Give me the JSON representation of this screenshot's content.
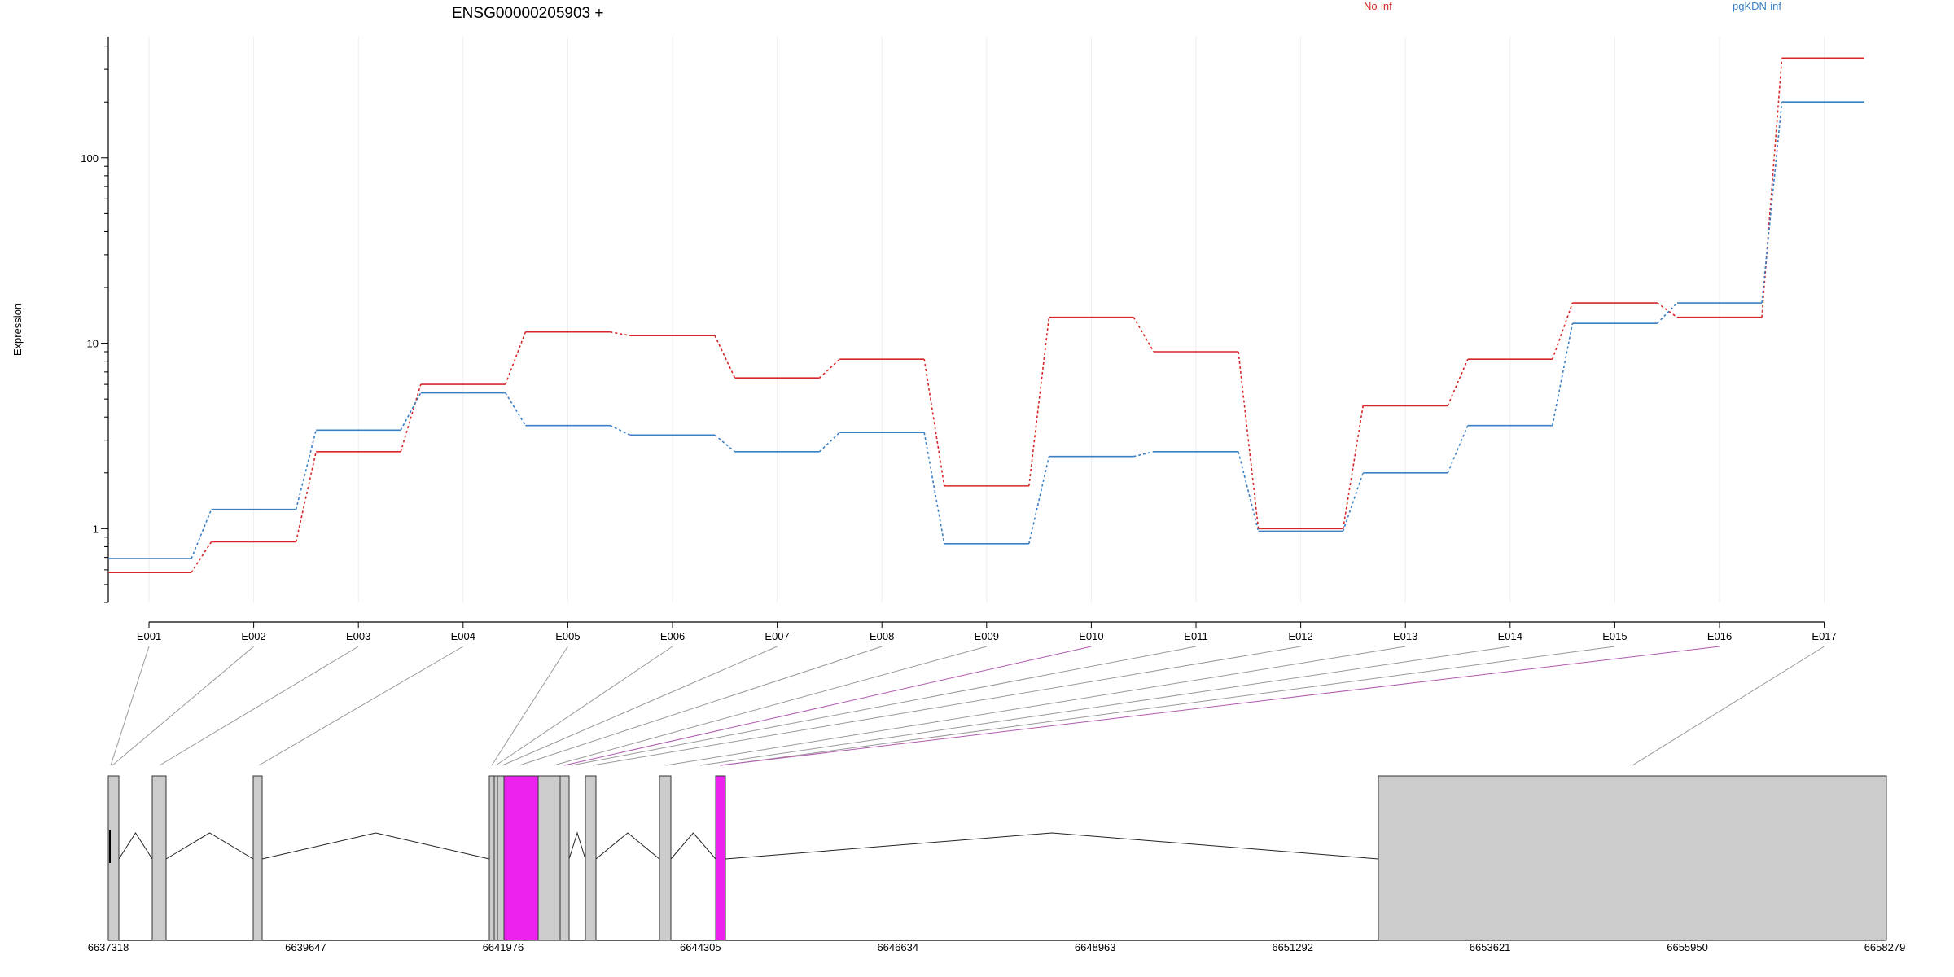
{
  "chart_data": {
    "type": "line",
    "title": "ENSG00000205903 +",
    "ylabel": "Expression",
    "yscale": "log",
    "ylim": [
      0.4,
      450
    ],
    "yticks": [
      1,
      10,
      100
    ],
    "yticklabels": [
      "1",
      "10",
      "100"
    ],
    "categories": [
      "E001",
      "E002",
      "E003",
      "E004",
      "E005",
      "E006",
      "E007",
      "E008",
      "E009",
      "E010",
      "E011",
      "E012",
      "E013",
      "E014",
      "E015",
      "E016",
      "E017"
    ],
    "series": [
      {
        "name": "No-inf",
        "color": "#d62728",
        "values": [
          0.58,
          0.85,
          2.6,
          6.0,
          11.5,
          11.0,
          6.5,
          8.2,
          1.7,
          13.8,
          9.0,
          1.0,
          4.6,
          8.2,
          16.5,
          13.8,
          345
        ]
      },
      {
        "name": "pgKDN-inf",
        "color": "#3b7fc4",
        "values": [
          0.69,
          1.27,
          3.4,
          5.4,
          3.6,
          3.2,
          2.6,
          3.3,
          0.83,
          2.45,
          2.6,
          0.97,
          2.0,
          3.6,
          12.8,
          16.5,
          200
        ]
      }
    ],
    "grid": true,
    "legend_position": "top"
  },
  "gene_model": {
    "genomic_ticks": [
      "6637318",
      "6639647",
      "6641976",
      "6644305",
      "6646634",
      "6648963",
      "6651292",
      "6653621",
      "6655950",
      "6658279"
    ],
    "highlighted_exons": [
      "E010",
      "E016"
    ],
    "highlight_color": "#ee22ee",
    "exon_color": "#cccccc"
  }
}
